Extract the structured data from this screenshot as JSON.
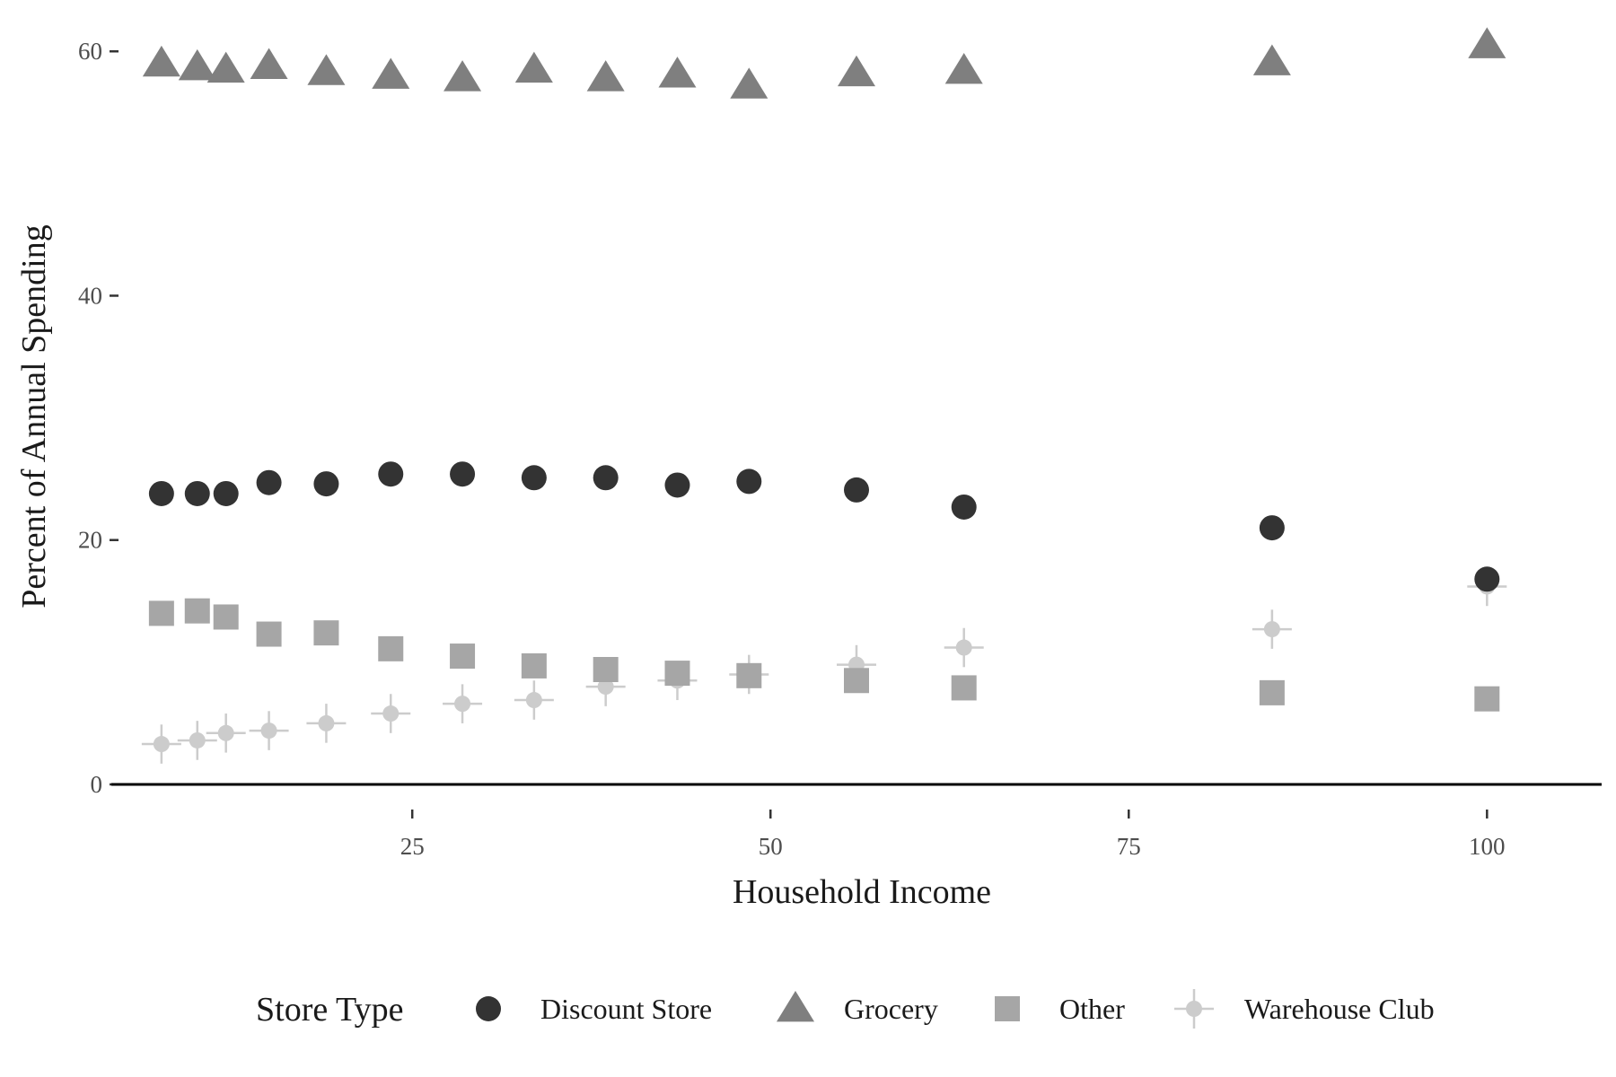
{
  "chart_data": {
    "type": "scatter",
    "title": "",
    "xlabel": "Household Income",
    "ylabel": "Percent of Annual Spending",
    "xlim": [
      4,
      108
    ],
    "ylim": [
      -2.5,
      62
    ],
    "x_ticks": [
      25,
      50,
      75,
      100
    ],
    "y_ticks": [
      0,
      20,
      40,
      60
    ],
    "grid": false,
    "legend": {
      "title": "Store Type",
      "placement": "bottom"
    },
    "x": [
      7.5,
      10,
      12,
      15,
      19,
      23.5,
      28.5,
      33.5,
      38.5,
      43.5,
      48.5,
      56,
      63.5,
      85,
      100
    ],
    "series": [
      {
        "name": "Discount Store",
        "marker": "circle",
        "color": "#333333",
        "values": [
          23.8,
          23.8,
          23.8,
          24.7,
          24.6,
          25.4,
          25.4,
          25.1,
          25.1,
          24.5,
          24.8,
          24.1,
          22.7,
          21.0,
          16.8
        ]
      },
      {
        "name": "Grocery",
        "marker": "triangle",
        "color": "#7f7f7f",
        "values": [
          59.0,
          58.7,
          58.5,
          58.8,
          58.3,
          58.0,
          57.8,
          58.5,
          57.8,
          58.1,
          57.2,
          58.2,
          58.4,
          59.1,
          60.5
        ]
      },
      {
        "name": "Other",
        "marker": "square",
        "color": "#a6a6a6",
        "values": [
          14.0,
          14.2,
          13.7,
          12.3,
          12.4,
          11.1,
          10.5,
          9.7,
          9.4,
          9.1,
          8.9,
          8.5,
          7.9,
          7.5,
          7.0
        ]
      },
      {
        "name": "Warehouse Club",
        "marker": "pointrange",
        "color": "#cccccc",
        "values": [
          3.3,
          3.6,
          4.2,
          4.4,
          5.0,
          5.8,
          6.6,
          6.9,
          8.0,
          8.5,
          9.0,
          9.8,
          11.2,
          12.7,
          16.2
        ],
        "lower": [
          1.7,
          2.0,
          2.6,
          2.8,
          3.4,
          4.2,
          5.0,
          5.3,
          6.4,
          6.9,
          7.4,
          8.2,
          9.6,
          11.1,
          14.6
        ],
        "upper": [
          4.9,
          5.2,
          5.8,
          6.0,
          6.6,
          7.4,
          8.2,
          8.5,
          9.6,
          10.1,
          10.6,
          11.4,
          12.8,
          14.3,
          17.8
        ]
      }
    ]
  }
}
